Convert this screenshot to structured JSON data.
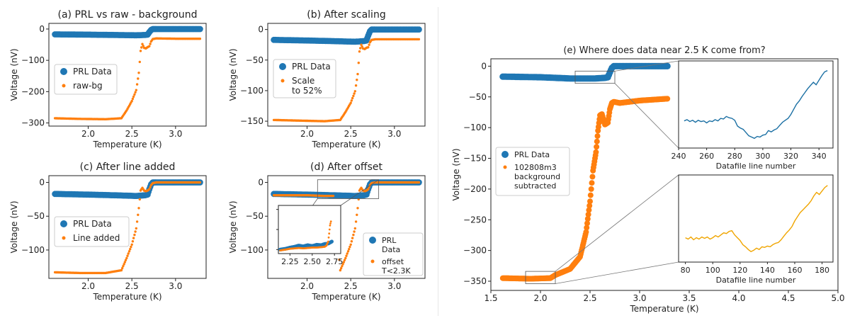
{
  "chart_data": [
    {
      "id": "a",
      "type": "scatter",
      "title": "(a) PRL vs raw - background",
      "xlabel": "Temperature (K)",
      "ylabel": "Voltage (nV)",
      "xlim": [
        1.55,
        3.35
      ],
      "ylim": [
        -310,
        18
      ],
      "xticks": [
        2.0,
        2.5,
        3.0
      ],
      "yticks": [
        0,
        -100,
        -200,
        -300
      ],
      "xtick_labels": [
        "2.0",
        "2.5",
        "3.0"
      ],
      "ytick_labels": [
        "0",
        "−100",
        "−200",
        "−300"
      ],
      "legend": [
        {
          "label": "PRL Data",
          "color": "#1f77b4"
        },
        {
          "label": "raw-bg",
          "color": "#ff7f0e"
        }
      ],
      "series": [
        {
          "name": "PRL Data",
          "color": "#1f77b4",
          "x": [
            1.62,
            2.0,
            2.3,
            2.55,
            2.65,
            2.68,
            2.7,
            2.72,
            2.74,
            2.78,
            3.0,
            3.28
          ],
          "y": [
            -17,
            -18,
            -19,
            -20,
            -19,
            -18,
            -10,
            -3,
            0,
            0,
            0,
            0
          ]
        },
        {
          "name": "raw-bg",
          "color": "#ff7f0e",
          "x": [
            1.62,
            1.9,
            2.2,
            2.38,
            2.44,
            2.5,
            2.55,
            2.58,
            2.6,
            2.62,
            2.64,
            2.66,
            2.68,
            2.7,
            2.72,
            2.74,
            2.78,
            3.0,
            3.28
          ],
          "y": [
            -285,
            -287,
            -288,
            -285,
            -260,
            -230,
            -195,
            -140,
            -70,
            -48,
            -60,
            -62,
            -58,
            -55,
            -40,
            -32,
            -30,
            -31,
            -31
          ]
        }
      ]
    },
    {
      "id": "b",
      "type": "scatter",
      "title": "(b) After scaling",
      "xlabel": "Temperature (K)",
      "ylabel": "Voltage (nV)",
      "xlim": [
        1.55,
        3.35
      ],
      "ylim": [
        -158,
        10
      ],
      "xticks": [
        2.0,
        2.5,
        3.0
      ],
      "yticks": [
        0,
        -50,
        -100,
        -150
      ],
      "xtick_labels": [
        "2.0",
        "2.5",
        "3.0"
      ],
      "ytick_labels": [
        "0",
        "−50",
        "−100",
        "−150"
      ],
      "legend": [
        {
          "label": "PRL Data",
          "color": "#1f77b4"
        },
        {
          "label": "Scale\nto 52%",
          "color": "#ff7f0e"
        }
      ],
      "series": [
        {
          "name": "PRL Data",
          "color": "#1f77b4",
          "x": [
            1.62,
            2.0,
            2.3,
            2.55,
            2.65,
            2.68,
            2.7,
            2.72,
            2.74,
            2.78,
            3.0,
            3.28
          ],
          "y": [
            -17,
            -18,
            -19,
            -20,
            -19,
            -18,
            -10,
            -3,
            0,
            0,
            0,
            0
          ]
        },
        {
          "name": "Scale to 52%",
          "color": "#ff7f0e",
          "x": [
            1.62,
            1.9,
            2.2,
            2.38,
            2.44,
            2.5,
            2.55,
            2.58,
            2.6,
            2.62,
            2.64,
            2.66,
            2.68,
            2.7,
            2.72,
            2.74,
            2.78,
            3.0,
            3.28
          ],
          "y": [
            -148,
            -149,
            -150,
            -148,
            -135,
            -120,
            -101,
            -73,
            -36,
            -25,
            -31,
            -32,
            -30,
            -29,
            -21,
            -17,
            -16,
            -16,
            -16
          ]
        }
      ]
    },
    {
      "id": "c",
      "type": "scatter",
      "title": "(c) After line added",
      "xlabel": "Temperature (K)",
      "ylabel": "Voltage (nV)",
      "xlim": [
        1.55,
        3.35
      ],
      "ylim": [
        -142,
        10
      ],
      "xticks": [
        2.0,
        2.5,
        3.0
      ],
      "yticks": [
        0,
        -50,
        -100
      ],
      "xtick_labels": [
        "2.0",
        "2.5",
        "3.0"
      ],
      "ytick_labels": [
        "0",
        "−50",
        "−100"
      ],
      "legend": [
        {
          "label": "PRL Data",
          "color": "#1f77b4"
        },
        {
          "label": "Line added",
          "color": "#ff7f0e"
        }
      ],
      "series": [
        {
          "name": "PRL Data",
          "color": "#1f77b4",
          "x": [
            1.62,
            2.0,
            2.3,
            2.55,
            2.65,
            2.68,
            2.7,
            2.72,
            2.74,
            2.78,
            3.0,
            3.28
          ],
          "y": [
            -17,
            -18,
            -19,
            -20,
            -19,
            -18,
            -10,
            -3,
            0,
            0,
            0,
            0
          ]
        },
        {
          "name": "Line added",
          "color": "#ff7f0e",
          "x": [
            1.62,
            1.9,
            2.2,
            2.38,
            2.44,
            2.5,
            2.55,
            2.58,
            2.6,
            2.62,
            2.64,
            2.66,
            2.68,
            2.7,
            2.72,
            2.74,
            2.78,
            3.0,
            3.28
          ],
          "y": [
            -133,
            -134,
            -134,
            -130,
            -112,
            -92,
            -68,
            -38,
            -12,
            -8,
            -12,
            -13,
            -12,
            -10,
            -4,
            -1,
            0,
            0,
            0
          ]
        }
      ]
    },
    {
      "id": "d",
      "type": "scatter",
      "title": "(d) After offset",
      "xlabel": "Temperature (K)",
      "ylabel": "Voltage (nV)",
      "xlim": [
        1.55,
        3.35
      ],
      "ylim": [
        -142,
        10
      ],
      "xticks": [
        2.0,
        2.5,
        3.0
      ],
      "yticks": [
        0,
        -50,
        -100
      ],
      "xtick_labels": [
        "2.0",
        "2.5",
        "3.0"
      ],
      "ytick_labels": [
        "0",
        "−50",
        "−100"
      ],
      "legend": [
        {
          "label": "PRL\nData",
          "color": "#1f77b4"
        },
        {
          "label": "offset\nT<2.3K",
          "color": "#ff7f0e"
        }
      ],
      "series": [
        {
          "name": "PRL Data",
          "color": "#1f77b4",
          "x": [
            1.62,
            2.0,
            2.3,
            2.55,
            2.65,
            2.68,
            2.7,
            2.72,
            2.74,
            2.78,
            3.0,
            3.28
          ],
          "y": [
            -17,
            -18,
            -19,
            -20,
            -19,
            -18,
            -10,
            -3,
            0,
            0,
            0,
            0
          ]
        },
        {
          "name": "offset T<2.3K",
          "color": "#ff7f0e",
          "x": [
            1.62,
            2.0,
            2.2,
            2.3,
            2.38,
            2.44,
            2.5,
            2.55,
            2.58,
            2.6,
            2.62,
            2.64,
            2.66,
            2.68,
            2.7,
            2.72,
            2.74,
            2.78,
            3.0,
            3.28
          ],
          "y": [
            -19,
            -19,
            -20,
            -20,
            -130,
            -112,
            -92,
            -68,
            -38,
            -12,
            -8,
            -12,
            -13,
            -12,
            -10,
            -4,
            -1,
            0,
            0,
            0
          ]
        }
      ],
      "inset": {
        "xlim": [
          2.12,
          2.82
        ],
        "ylim": [
          -110,
          10
        ],
        "xticks": [
          2.25,
          2.5,
          2.75
        ],
        "yticks": [
          0,
          -50,
          -100
        ],
        "xtick_labels": [
          "2.25",
          "2.50",
          "2.75"
        ],
        "ytick_labels": [
          "0",
          "−50",
          "−100"
        ],
        "series": [
          {
            "name": "PRL Data",
            "color": "#1f77b4",
            "x": [
              2.14,
              2.2,
              2.25,
              2.3,
              2.35,
              2.4,
              2.45,
              2.5,
              2.55,
              2.6,
              2.64,
              2.68,
              2.72
            ],
            "y": [
              -100,
              -98,
              -95,
              -93,
              -90,
              -92,
              -89,
              -91,
              -88,
              -89,
              -86,
              -85,
              -80
            ]
          },
          {
            "name": "offset T<2.3K",
            "color": "#ff7f0e",
            "x": [
              2.14,
              2.2,
              2.25,
              2.3,
              2.35,
              2.4,
              2.45,
              2.5,
              2.55,
              2.6,
              2.64,
              2.66,
              2.68,
              2.69,
              2.7,
              2.71
            ],
            "y": [
              -102,
              -100,
              -98,
              -97,
              -96,
              -97,
              -96,
              -95,
              -95,
              -94,
              -93,
              -90,
              -80,
              -60,
              -40,
              -30
            ]
          }
        ]
      }
    },
    {
      "id": "e",
      "type": "scatter",
      "title": "(e) Where does data near 2.5 K come from?",
      "xlabel": "Temperature (K)",
      "ylabel": "Voltage (nV)",
      "xlim": [
        1.5,
        5.0
      ],
      "ylim": [
        -365,
        12
      ],
      "xticks": [
        1.5,
        2.0,
        2.5,
        3.0,
        3.5,
        4.0,
        4.5,
        5.0
      ],
      "yticks": [
        0,
        -50,
        -100,
        -150,
        -200,
        -250,
        -300,
        -350
      ],
      "xtick_labels": [
        "1.5",
        "2.0",
        "2.5",
        "3.0",
        "3.5",
        "4.0",
        "4.5",
        "5.0"
      ],
      "ytick_labels": [
        "0",
        "−50",
        "−100",
        "−150",
        "−200",
        "−250",
        "−300",
        "−350"
      ],
      "legend": [
        {
          "label": "PRL Data",
          "color": "#1f77b4"
        },
        {
          "label": "102808m3\nbackground\nsubtracted",
          "color": "#ff7f0e"
        }
      ],
      "series": [
        {
          "name": "PRL Data",
          "color": "#1f77b4",
          "x": [
            1.62,
            2.0,
            2.3,
            2.55,
            2.65,
            2.68,
            2.7,
            2.72,
            2.74,
            2.78,
            3.0,
            3.28
          ],
          "y": [
            -17,
            -18,
            -20,
            -20,
            -19,
            -18,
            -10,
            -3,
            0,
            0,
            0,
            0
          ]
        },
        {
          "name": "102808m3 background subtracted",
          "color": "#ff7f0e",
          "x": [
            1.62,
            1.9,
            2.1,
            2.15,
            2.3,
            2.4,
            2.46,
            2.5,
            2.53,
            2.56,
            2.58,
            2.6,
            2.62,
            2.65,
            2.68,
            2.7,
            2.72,
            2.74,
            2.8,
            3.0,
            3.28
          ],
          "y": [
            -345,
            -346,
            -345,
            -340,
            -330,
            -310,
            -270,
            -220,
            -170,
            -140,
            -105,
            -80,
            -78,
            -95,
            -92,
            -70,
            -60,
            -58,
            -60,
            -56,
            -53
          ]
        }
      ],
      "inset_top": {
        "xlabel": "Datafile line number",
        "xlim": [
          240,
          350
        ],
        "xticks": [
          240,
          260,
          280,
          300,
          320,
          340
        ],
        "xtick_labels": [
          "240",
          "260",
          "280",
          "300",
          "320",
          "340"
        ],
        "color": "#1a6fa3",
        "x": [
          244,
          246,
          248,
          250,
          252,
          254,
          256,
          258,
          260,
          262,
          264,
          266,
          268,
          270,
          272,
          274,
          276,
          278,
          280,
          282,
          284,
          286,
          288,
          290,
          292,
          294,
          296,
          298,
          300,
          302,
          304,
          306,
          308,
          310,
          312,
          314,
          316,
          318,
          320,
          322,
          324,
          326,
          328,
          330,
          332,
          334,
          336,
          338,
          340,
          342,
          344,
          346
        ],
        "y": [
          0.42,
          0.44,
          0.41,
          0.43,
          0.4,
          0.43,
          0.41,
          0.42,
          0.39,
          0.42,
          0.41,
          0.44,
          0.42,
          0.46,
          0.45,
          0.49,
          0.47,
          0.46,
          0.43,
          0.34,
          0.31,
          0.29,
          0.24,
          0.19,
          0.17,
          0.15,
          0.18,
          0.17,
          0.2,
          0.21,
          0.27,
          0.25,
          0.28,
          0.3,
          0.35,
          0.4,
          0.43,
          0.46,
          0.52,
          0.6,
          0.68,
          0.73,
          0.8,
          0.86,
          0.92,
          0.97,
          1.02,
          0.98,
          1.05,
          1.12,
          1.18,
          1.2
        ]
      },
      "inset_bottom": {
        "xlabel": "Datafile line number",
        "xlim": [
          75,
          188
        ],
        "xticks": [
          80,
          100,
          120,
          140,
          160,
          180
        ],
        "xtick_labels": [
          "80",
          "100",
          "120",
          "140",
          "160",
          "180"
        ],
        "color": "#f0a500",
        "x": [
          80,
          82,
          84,
          86,
          88,
          90,
          92,
          94,
          96,
          98,
          100,
          102,
          104,
          106,
          108,
          110,
          112,
          114,
          116,
          118,
          120,
          122,
          124,
          126,
          128,
          130,
          132,
          134,
          136,
          138,
          140,
          142,
          144,
          146,
          148,
          150,
          152,
          154,
          156,
          158,
          160,
          162,
          164,
          166,
          168,
          170,
          172,
          174,
          176,
          178,
          180,
          182,
          184
        ],
        "y": [
          0.4,
          0.38,
          0.41,
          0.37,
          0.4,
          0.38,
          0.41,
          0.39,
          0.41,
          0.38,
          0.4,
          0.43,
          0.41,
          0.44,
          0.47,
          0.46,
          0.49,
          0.5,
          0.44,
          0.4,
          0.36,
          0.3,
          0.27,
          0.23,
          0.2,
          0.22,
          0.25,
          0.23,
          0.27,
          0.26,
          0.28,
          0.27,
          0.3,
          0.32,
          0.33,
          0.37,
          0.42,
          0.47,
          0.51,
          0.56,
          0.64,
          0.7,
          0.76,
          0.8,
          0.84,
          0.88,
          0.93,
          1.0,
          1.05,
          1.02,
          1.07,
          1.12,
          1.15
        ]
      }
    }
  ]
}
